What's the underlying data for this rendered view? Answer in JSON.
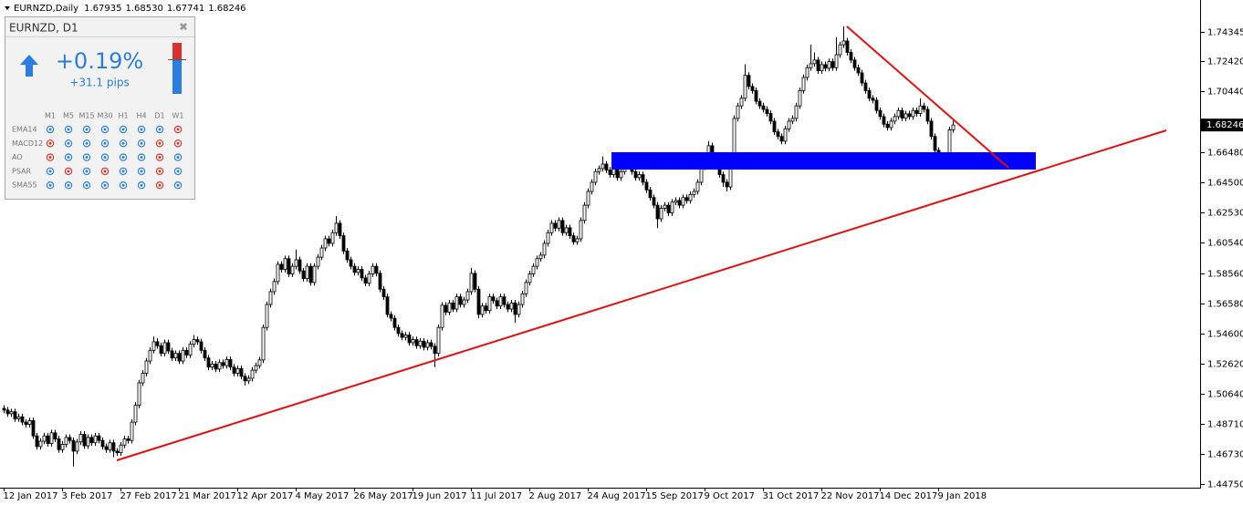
{
  "header": {
    "symbol": "EURNZD,Daily",
    "ohlc": [
      "1.67935",
      "1.68530",
      "1.67741",
      "1.68246"
    ]
  },
  "widget": {
    "title": "EURNZD, D1",
    "change": "+0.19%",
    "pips": "+31.1 pips",
    "timeframes": [
      "M1",
      "M5",
      "M15",
      "M30",
      "H1",
      "H4",
      "D1",
      "W1"
    ],
    "indicators": [
      "EMA14",
      "MACD12",
      "AO",
      "PSAR",
      "SMA55"
    ],
    "signal_colors": [
      [
        "#2a7de1",
        "#2a7de1",
        "#2a7de1",
        "#2a7de1",
        "#2a7de1",
        "#2a7de1",
        "#2a7de1",
        "#d9342b"
      ],
      [
        "#d9342b",
        "#2a7de1",
        "#2a7de1",
        "#2a7de1",
        "#2a7de1",
        "#2a7de1",
        "#d9342b",
        "#d9342b"
      ],
      [
        "#d9342b",
        "#2a7de1",
        "#2a7de1",
        "#2a7de1",
        "#2a7de1",
        "#2a7de1",
        "#d9342b",
        "#2a7de1"
      ],
      [
        "#2a7de1",
        "#d9342b",
        "#2a7de1",
        "#d9342b",
        "#2a7de1",
        "#2a7de1",
        "#d9342b",
        "#2a7de1"
      ],
      [
        "#2a7de1",
        "#2a7de1",
        "#2a7de1",
        "#2a7de1",
        "#2a7de1",
        "#2a7de1",
        "#d9342b",
        "#2a7de1"
      ]
    ]
  },
  "chart_data": {
    "type": "candlestick",
    "up_color": "#ffffff",
    "down_color": "#000000",
    "wick_color": "#000000",
    "categories": [
      "12 Jan 2017",
      null,
      null,
      null,
      null,
      null,
      null,
      null,
      null,
      null,
      null,
      null,
      null,
      null,
      null,
      null,
      "3 Feb 2017",
      null,
      null,
      null,
      null,
      null,
      null,
      null,
      null,
      null,
      null,
      null,
      null,
      null,
      null,
      null,
      "27 Feb 2017",
      null,
      null,
      null,
      null,
      null,
      null,
      null,
      null,
      null,
      null,
      null,
      null,
      null,
      null,
      null,
      "21 Mar 2017",
      null,
      null,
      null,
      null,
      null,
      null,
      null,
      null,
      null,
      null,
      null,
      null,
      null,
      null,
      null,
      "12 Apr 2017",
      null,
      null,
      null,
      null,
      null,
      null,
      null,
      null,
      null,
      null,
      null,
      null,
      null,
      null,
      null,
      "4 May 2017",
      null,
      null,
      null,
      null,
      null,
      null,
      null,
      null,
      null,
      null,
      null,
      null,
      null,
      null,
      null,
      "26 May 2017",
      null,
      null,
      null,
      null,
      null,
      null,
      null,
      null,
      null,
      null,
      null,
      null,
      null,
      null,
      null,
      "19 Jun 2017",
      null,
      null,
      null,
      null,
      null,
      null,
      null,
      null,
      null,
      null,
      null,
      null,
      null,
      null,
      null,
      "11 Jul 2017",
      null,
      null,
      null,
      null,
      null,
      null,
      null,
      null,
      null,
      null,
      null,
      null,
      null,
      null,
      null,
      "2 Aug 2017",
      null,
      null,
      null,
      null,
      null,
      null,
      null,
      null,
      null,
      null,
      null,
      null,
      null,
      null,
      null,
      "24 Aug 2017",
      null,
      null,
      null,
      null,
      null,
      null,
      null,
      null,
      null,
      null,
      null,
      null,
      null,
      null,
      null,
      "15 Sep 2017",
      null,
      null,
      null,
      null,
      null,
      null,
      null,
      null,
      null,
      null,
      null,
      null,
      null,
      null,
      null,
      "9 Oct 2017",
      null,
      null,
      null,
      null,
      null,
      null,
      null,
      null,
      null,
      null,
      null,
      null,
      null,
      null,
      null,
      "31 Oct 2017",
      null,
      null,
      null,
      null,
      null,
      null,
      null,
      null,
      null,
      null,
      null,
      null,
      null,
      null,
      null,
      "22 Nov 2017",
      null,
      null,
      null,
      null,
      null,
      null,
      null,
      null,
      null,
      null,
      null,
      null,
      null,
      null,
      null,
      "14 Dec 2017",
      null,
      null,
      null,
      null,
      null,
      null,
      null,
      null,
      null,
      null,
      null,
      null,
      null,
      null,
      null,
      "9 Jan 2018",
      null,
      null,
      null,
      null
    ],
    "open": [
      1.497,
      1.4959,
      1.4935,
      1.4948,
      1.4902,
      1.4915,
      1.488,
      1.4865,
      1.489,
      1.479,
      1.472,
      1.4755,
      1.479,
      1.474,
      1.481,
      1.477,
      1.47,
      1.4735,
      1.478,
      1.476,
      1.469,
      1.475,
      1.48,
      1.4725,
      1.478,
      1.4745,
      1.479,
      1.476,
      1.472,
      1.47,
      1.4745,
      1.469,
      1.468,
      1.473,
      1.477,
      1.476,
      1.488,
      1.499,
      1.5137,
      1.52,
      1.528,
      1.535,
      1.5406,
      1.538,
      1.533,
      1.54,
      1.5346,
      1.53,
      1.533,
      1.528,
      1.535,
      1.532,
      1.539,
      1.542,
      1.5406,
      1.535,
      1.53,
      1.524,
      1.526,
      1.5227,
      1.527,
      1.525,
      1.529,
      1.524,
      1.52,
      1.523,
      1.518,
      1.515,
      1.5167,
      1.522,
      1.525,
      1.5287,
      1.55,
      1.565,
      1.5734,
      1.58,
      1.5913,
      1.588,
      1.595,
      1.585,
      1.59,
      1.5943,
      1.587,
      1.582,
      1.59,
      1.5794,
      1.59,
      1.596,
      1.602,
      1.608,
      1.605,
      1.612,
      1.6182,
      1.61,
      1.6,
      1.5943,
      1.59,
      1.586,
      1.588,
      1.5824,
      1.579,
      1.585,
      1.59,
      1.5854,
      1.575,
      1.57,
      1.5585,
      1.556,
      1.55,
      1.546,
      1.5435,
      1.545,
      1.54,
      1.542,
      1.538,
      1.541,
      1.537,
      1.54,
      1.5376,
      1.533,
      1.55,
      1.5645,
      1.56,
      1.566,
      1.562,
      1.57,
      1.565,
      1.568,
      1.5734,
      1.5854,
      1.575,
      1.5585,
      1.564,
      1.561,
      1.57,
      1.5675,
      1.564,
      1.57,
      1.565,
      1.562,
      1.566,
      1.5585,
      1.565,
      1.572,
      1.5794,
      1.585,
      1.59,
      1.595,
      1.5973,
      1.605,
      1.612,
      1.6182,
      1.615,
      1.62,
      1.612,
      1.6152,
      1.61,
      1.606,
      1.608,
      1.62,
      1.63,
      1.639,
      1.645,
      1.652,
      1.654,
      1.6569,
      1.653,
      1.65,
      1.656,
      1.648,
      1.652,
      1.66,
      1.6569,
      1.652,
      1.648,
      1.65,
      1.645,
      1.64,
      1.635,
      1.63,
      1.6211,
      1.628,
      1.63,
      1.625,
      1.632,
      1.6331,
      1.63,
      1.635,
      1.633,
      1.637,
      1.639,
      1.645,
      1.655,
      1.662,
      1.6689,
      1.662,
      1.6569,
      1.65,
      1.645,
      1.642,
      1.66,
      1.6868,
      1.695,
      1.7,
      1.715,
      1.7077,
      1.705,
      1.698,
      1.695,
      1.6927,
      1.69,
      1.685,
      1.678,
      1.675,
      1.6719,
      1.68,
      1.685,
      1.6868,
      1.695,
      1.705,
      1.7136,
      1.72,
      1.7226,
      1.725,
      1.718,
      1.722,
      1.7196,
      1.724,
      1.72,
      1.7285,
      1.735,
      1.7375,
      1.73,
      1.725,
      1.72,
      1.7166,
      1.71,
      1.705,
      1.7,
      1.6987,
      1.692,
      1.688,
      1.683,
      1.6808,
      1.685,
      1.688,
      1.692,
      1.687,
      1.6898,
      1.688,
      1.692,
      1.69,
      1.695,
      1.6927,
      1.685,
      1.675,
      1.6659,
      1.66,
      1.662,
      1.6569,
      1.67935
    ],
    "high": [
      1.499,
      1.4979,
      1.4968,
      1.4968,
      1.4935,
      1.4935,
      1.49,
      1.491,
      1.491,
      1.481,
      1.4775,
      1.481,
      1.481,
      1.483,
      1.483,
      1.479,
      1.4755,
      1.48,
      1.48,
      1.478,
      1.477,
      1.482,
      1.482,
      1.48,
      1.48,
      1.481,
      1.481,
      1.478,
      1.474,
      1.4765,
      1.4765,
      1.471,
      1.475,
      1.479,
      1.479,
      1.49,
      1.501,
      1.5157,
      1.522,
      1.53,
      1.537,
      1.544,
      1.543,
      1.54,
      1.542,
      1.542,
      1.5366,
      1.535,
      1.535,
      1.537,
      1.537,
      1.541,
      1.545,
      1.544,
      1.5426,
      1.537,
      1.532,
      1.528,
      1.528,
      1.529,
      1.529,
      1.531,
      1.531,
      1.526,
      1.525,
      1.525,
      1.52,
      1.5187,
      1.524,
      1.527,
      1.5307,
      1.552,
      1.567,
      1.5754,
      1.582,
      1.5933,
      1.5933,
      1.597,
      1.597,
      1.592,
      1.601,
      1.5963,
      1.589,
      1.592,
      1.592,
      1.592,
      1.598,
      1.604,
      1.61,
      1.61,
      1.614,
      1.6228,
      1.6202,
      1.612,
      1.602,
      1.5963,
      1.592,
      1.59,
      1.59,
      1.5844,
      1.587,
      1.592,
      1.592,
      1.5874,
      1.577,
      1.572,
      1.5605,
      1.558,
      1.552,
      1.548,
      1.547,
      1.547,
      1.544,
      1.544,
      1.543,
      1.543,
      1.542,
      1.542,
      1.5396,
      1.552,
      1.5665,
      1.5665,
      1.568,
      1.568,
      1.572,
      1.572,
      1.57,
      1.5754,
      1.589,
      1.5874,
      1.577,
      1.566,
      1.566,
      1.572,
      1.572,
      1.5695,
      1.572,
      1.572,
      1.567,
      1.568,
      1.568,
      1.567,
      1.574,
      1.5814,
      1.587,
      1.592,
      1.597,
      1.5993,
      1.607,
      1.614,
      1.6202,
      1.6202,
      1.622,
      1.622,
      1.6172,
      1.6172,
      1.612,
      1.61,
      1.622,
      1.632,
      1.641,
      1.647,
      1.654,
      1.656,
      1.662,
      1.6589,
      1.655,
      1.658,
      1.658,
      1.654,
      1.664,
      1.662,
      1.6589,
      1.654,
      1.652,
      1.652,
      1.647,
      1.642,
      1.637,
      1.632,
      1.63,
      1.632,
      1.632,
      1.634,
      1.6351,
      1.6351,
      1.637,
      1.637,
      1.639,
      1.641,
      1.647,
      1.657,
      1.664,
      1.672,
      1.6709,
      1.664,
      1.6589,
      1.652,
      1.647,
      1.662,
      1.6888,
      1.697,
      1.702,
      1.7222,
      1.717,
      1.7097,
      1.707,
      1.7,
      1.697,
      1.6947,
      1.692,
      1.687,
      1.68,
      1.677,
      1.682,
      1.687,
      1.6888,
      1.697,
      1.707,
      1.7156,
      1.722,
      1.735,
      1.73,
      1.727,
      1.724,
      1.724,
      1.726,
      1.726,
      1.74,
      1.737,
      1.747,
      1.7395,
      1.732,
      1.727,
      1.722,
      1.7186,
      1.712,
      1.707,
      1.702,
      1.7007,
      1.694,
      1.69,
      1.685,
      1.687,
      1.69,
      1.694,
      1.694,
      1.6918,
      1.6918,
      1.694,
      1.694,
      1.7,
      1.697,
      1.6947,
      1.687,
      1.677,
      1.6679,
      1.664,
      1.664,
      1.6813,
      1.6853
    ],
    "low": [
      1.4939,
      1.4915,
      1.4915,
      1.4882,
      1.4882,
      1.486,
      1.4845,
      1.4845,
      1.477,
      1.47,
      1.47,
      1.4735,
      1.472,
      1.472,
      1.475,
      1.468,
      1.468,
      1.4715,
      1.474,
      1.459,
      1.467,
      1.473,
      1.4705,
      1.4705,
      1.4725,
      1.4725,
      1.474,
      1.47,
      1.468,
      1.468,
      1.465,
      1.466,
      1.466,
      1.471,
      1.474,
      1.474,
      1.486,
      1.497,
      1.5117,
      1.518,
      1.526,
      1.533,
      1.536,
      1.531,
      1.531,
      1.5326,
      1.528,
      1.528,
      1.526,
      1.526,
      1.53,
      1.53,
      1.537,
      1.5386,
      1.533,
      1.528,
      1.522,
      1.522,
      1.5207,
      1.5207,
      1.523,
      1.523,
      1.522,
      1.518,
      1.518,
      1.516,
      1.512,
      1.513,
      1.5147,
      1.52,
      1.523,
      1.5267,
      1.548,
      1.563,
      1.5714,
      1.578,
      1.586,
      1.586,
      1.583,
      1.583,
      1.588,
      1.585,
      1.58,
      1.58,
      1.5774,
      1.5774,
      1.588,
      1.594,
      1.6,
      1.603,
      1.603,
      1.61,
      1.608,
      1.598,
      1.5923,
      1.588,
      1.584,
      1.584,
      1.5804,
      1.577,
      1.577,
      1.583,
      1.5834,
      1.573,
      1.568,
      1.5565,
      1.554,
      1.548,
      1.544,
      1.5415,
      1.5415,
      1.538,
      1.538,
      1.536,
      1.536,
      1.535,
      1.535,
      1.5356,
      1.524,
      1.531,
      1.548,
      1.558,
      1.558,
      1.56,
      1.56,
      1.563,
      1.563,
      1.566,
      1.5714,
      1.573,
      1.556,
      1.5565,
      1.559,
      1.559,
      1.5655,
      1.562,
      1.562,
      1.563,
      1.56,
      1.56,
      1.553,
      1.5565,
      1.563,
      1.57,
      1.5774,
      1.583,
      1.588,
      1.593,
      1.5953,
      1.603,
      1.61,
      1.613,
      1.613,
      1.61,
      1.61,
      1.608,
      1.604,
      1.604,
      1.606,
      1.618,
      1.628,
      1.637,
      1.643,
      1.65,
      1.652,
      1.651,
      1.648,
      1.648,
      1.646,
      1.646,
      1.65,
      1.6549,
      1.65,
      1.646,
      1.646,
      1.643,
      1.638,
      1.633,
      1.628,
      1.615,
      1.6191,
      1.626,
      1.623,
      1.623,
      1.63,
      1.628,
      1.628,
      1.631,
      1.631,
      1.635,
      1.637,
      1.643,
      1.653,
      1.66,
      1.66,
      1.6549,
      1.648,
      1.642,
      1.639,
      1.64,
      1.658,
      1.6848,
      1.693,
      1.698,
      1.7057,
      1.703,
      1.696,
      1.693,
      1.6907,
      1.688,
      1.683,
      1.676,
      1.673,
      1.6699,
      1.6699,
      1.678,
      1.683,
      1.6848,
      1.693,
      1.703,
      1.7116,
      1.718,
      1.7206,
      1.716,
      1.716,
      1.7176,
      1.7176,
      1.718,
      1.718,
      1.7265,
      1.733,
      1.728,
      1.723,
      1.718,
      1.7146,
      1.708,
      1.703,
      1.698,
      1.6967,
      1.69,
      1.686,
      1.681,
      1.6788,
      1.6788,
      1.683,
      1.686,
      1.685,
      1.685,
      1.686,
      1.686,
      1.688,
      1.688,
      1.6907,
      1.683,
      1.673,
      1.6639,
      1.658,
      1.658,
      1.6534,
      1.6549,
      1.67741
    ],
    "close": [
      1.4959,
      1.4935,
      1.4948,
      1.4902,
      1.4915,
      1.488,
      1.4865,
      1.489,
      1.479,
      1.472,
      1.4755,
      1.479,
      1.474,
      1.481,
      1.477,
      1.47,
      1.4735,
      1.478,
      1.476,
      1.469,
      1.475,
      1.48,
      1.4725,
      1.478,
      1.4745,
      1.479,
      1.476,
      1.472,
      1.47,
      1.4745,
      1.469,
      1.468,
      1.473,
      1.477,
      1.476,
      1.488,
      1.499,
      1.5137,
      1.52,
      1.528,
      1.535,
      1.5406,
      1.538,
      1.533,
      1.54,
      1.5346,
      1.53,
      1.533,
      1.528,
      1.535,
      1.532,
      1.539,
      1.542,
      1.5406,
      1.535,
      1.53,
      1.524,
      1.526,
      1.5227,
      1.527,
      1.525,
      1.529,
      1.524,
      1.52,
      1.523,
      1.518,
      1.515,
      1.5167,
      1.522,
      1.525,
      1.5287,
      1.55,
      1.565,
      1.5734,
      1.58,
      1.5913,
      1.588,
      1.595,
      1.585,
      1.59,
      1.5943,
      1.587,
      1.582,
      1.59,
      1.5794,
      1.59,
      1.596,
      1.602,
      1.608,
      1.605,
      1.612,
      1.6182,
      1.61,
      1.6,
      1.5943,
      1.59,
      1.586,
      1.588,
      1.5824,
      1.579,
      1.585,
      1.59,
      1.5854,
      1.575,
      1.57,
      1.5585,
      1.556,
      1.55,
      1.546,
      1.5435,
      1.545,
      1.54,
      1.542,
      1.538,
      1.541,
      1.537,
      1.54,
      1.5376,
      1.533,
      1.55,
      1.5645,
      1.56,
      1.566,
      1.562,
      1.57,
      1.565,
      1.568,
      1.5734,
      1.5854,
      1.575,
      1.5585,
      1.564,
      1.561,
      1.57,
      1.5675,
      1.564,
      1.57,
      1.565,
      1.562,
      1.566,
      1.5585,
      1.565,
      1.572,
      1.5794,
      1.585,
      1.59,
      1.595,
      1.5973,
      1.605,
      1.612,
      1.6182,
      1.615,
      1.62,
      1.612,
      1.6152,
      1.61,
      1.606,
      1.608,
      1.62,
      1.63,
      1.639,
      1.645,
      1.652,
      1.654,
      1.6569,
      1.653,
      1.65,
      1.656,
      1.648,
      1.652,
      1.66,
      1.6569,
      1.652,
      1.648,
      1.65,
      1.645,
      1.64,
      1.635,
      1.63,
      1.6211,
      1.628,
      1.63,
      1.625,
      1.632,
      1.6331,
      1.63,
      1.635,
      1.633,
      1.637,
      1.639,
      1.645,
      1.655,
      1.662,
      1.6689,
      1.662,
      1.6569,
      1.65,
      1.645,
      1.642,
      1.66,
      1.6868,
      1.695,
      1.7,
      1.715,
      1.7077,
      1.705,
      1.698,
      1.695,
      1.6927,
      1.69,
      1.685,
      1.678,
      1.675,
      1.6719,
      1.68,
      1.685,
      1.6868,
      1.695,
      1.705,
      1.7136,
      1.72,
      1.7226,
      1.725,
      1.718,
      1.722,
      1.7196,
      1.724,
      1.72,
      1.7285,
      1.735,
      1.7375,
      1.73,
      1.725,
      1.72,
      1.7166,
      1.71,
      1.705,
      1.7,
      1.6987,
      1.692,
      1.688,
      1.683,
      1.6808,
      1.685,
      1.688,
      1.692,
      1.687,
      1.6898,
      1.688,
      1.692,
      1.69,
      1.695,
      1.6927,
      1.685,
      1.675,
      1.6659,
      1.66,
      1.662,
      1.6569,
      1.6793,
      1.68246
    ],
    "ylim": [
      1.4451,
      1.7643
    ],
    "yticks": [
      1.74345,
      {
        "value": 1.7242,
        "label": "1.72420"
      },
      {
        "value": 1.7044,
        "label": "1.70440"
      },
      {
        "value": 1.6648,
        "label": "1.66480"
      },
      {
        "value": 1.645,
        "label": "1.64500"
      },
      {
        "value": 1.6253,
        "label": "1.62530"
      },
      {
        "value": 1.6054,
        "label": "1.60540"
      },
      {
        "value": 1.5856,
        "label": "1.58560"
      },
      {
        "value": 1.5658,
        "label": "1.56580"
      },
      {
        "value": 1.546,
        "label": "1.54600"
      },
      {
        "value": 1.5262,
        "label": "1.52620"
      },
      {
        "value": 1.5064,
        "label": "1.50640"
      },
      {
        "value": 1.4871,
        "label": "1.48710"
      },
      {
        "value": 1.4673,
        "label": "1.46730"
      },
      {
        "value": 1.4475,
        "label": "1.44750"
      }
    ]
  }
}
